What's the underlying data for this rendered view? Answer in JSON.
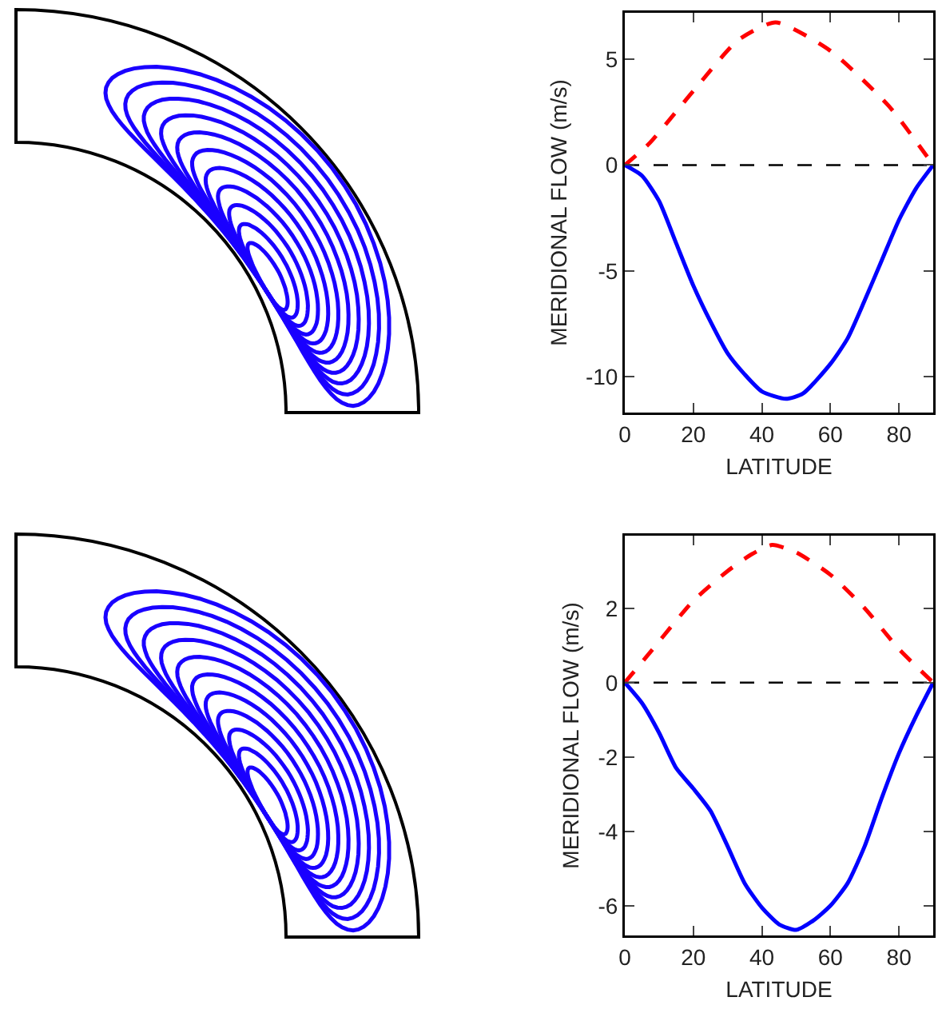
{
  "chart_data": [
    {
      "type": "line",
      "xlabel": "LATITUDE",
      "ylabel": "MERIDIONAL FLOW (m/s)",
      "xlim": [
        0,
        90
      ],
      "xticks": [
        0,
        20,
        40,
        60,
        80
      ],
      "ylim": [
        -11.7,
        7.2
      ],
      "yticks": [
        -10,
        -5,
        0,
        5
      ],
      "grid": false,
      "ref_lines": [
        {
          "axis": "y",
          "value": 0,
          "color": "#000000",
          "line_style": "dashed"
        }
      ],
      "series": [
        {
          "type": "line",
          "color": "#ff0000",
          "line_style": "dashed",
          "x": [
            0,
            7,
            20,
            33,
            44,
            60,
            77,
            90
          ],
          "values": [
            0,
            1.0,
            3.5,
            5.9,
            6.75,
            5.4,
            2.8,
            0
          ]
        },
        {
          "type": "line",
          "color": "#0000ff",
          "line_style": "solid",
          "x": [
            0,
            5,
            10,
            15,
            20,
            25,
            30,
            35,
            40,
            47,
            52,
            60,
            65,
            70,
            75,
            80,
            85,
            90
          ],
          "values": [
            0,
            -0.5,
            -1.7,
            -3.7,
            -5.7,
            -7.4,
            -8.9,
            -9.9,
            -10.7,
            -11.05,
            -10.8,
            -9.4,
            -8.2,
            -6.4,
            -4.5,
            -2.6,
            -1.1,
            0
          ]
        }
      ]
    },
    {
      "type": "line",
      "xlabel": "LATITUDE",
      "ylabel": "MERIDIONAL FLOW (m/s)",
      "xlim": [
        0,
        90
      ],
      "xticks": [
        0,
        20,
        40,
        60,
        80
      ],
      "ylim": [
        -6.8,
        3.95
      ],
      "yticks": [
        -6,
        -4,
        -2,
        0,
        2
      ],
      "grid": false,
      "ref_lines": [
        {
          "axis": "y",
          "value": 0,
          "color": "#000000",
          "line_style": "dashed"
        }
      ],
      "series": [
        {
          "type": "line",
          "color": "#ff0000",
          "line_style": "dashed",
          "x": [
            0,
            7,
            20,
            30,
            37,
            43,
            50,
            60,
            70,
            80,
            90
          ],
          "values": [
            0,
            0.77,
            2.2,
            3.0,
            3.45,
            3.7,
            3.5,
            2.9,
            2.0,
            0.9,
            0
          ]
        },
        {
          "type": "line",
          "color": "#0000ff",
          "line_style": "solid",
          "x": [
            0,
            5,
            10,
            15,
            20,
            25,
            30,
            35,
            40,
            45,
            50,
            55,
            60,
            65,
            70,
            75,
            80,
            85,
            90
          ],
          "values": [
            0,
            -0.55,
            -1.35,
            -2.3,
            -2.85,
            -3.45,
            -4.4,
            -5.4,
            -6.05,
            -6.5,
            -6.65,
            -6.4,
            -6.0,
            -5.4,
            -4.4,
            -3.1,
            -1.9,
            -0.9,
            0
          ]
        }
      ]
    }
  ]
}
